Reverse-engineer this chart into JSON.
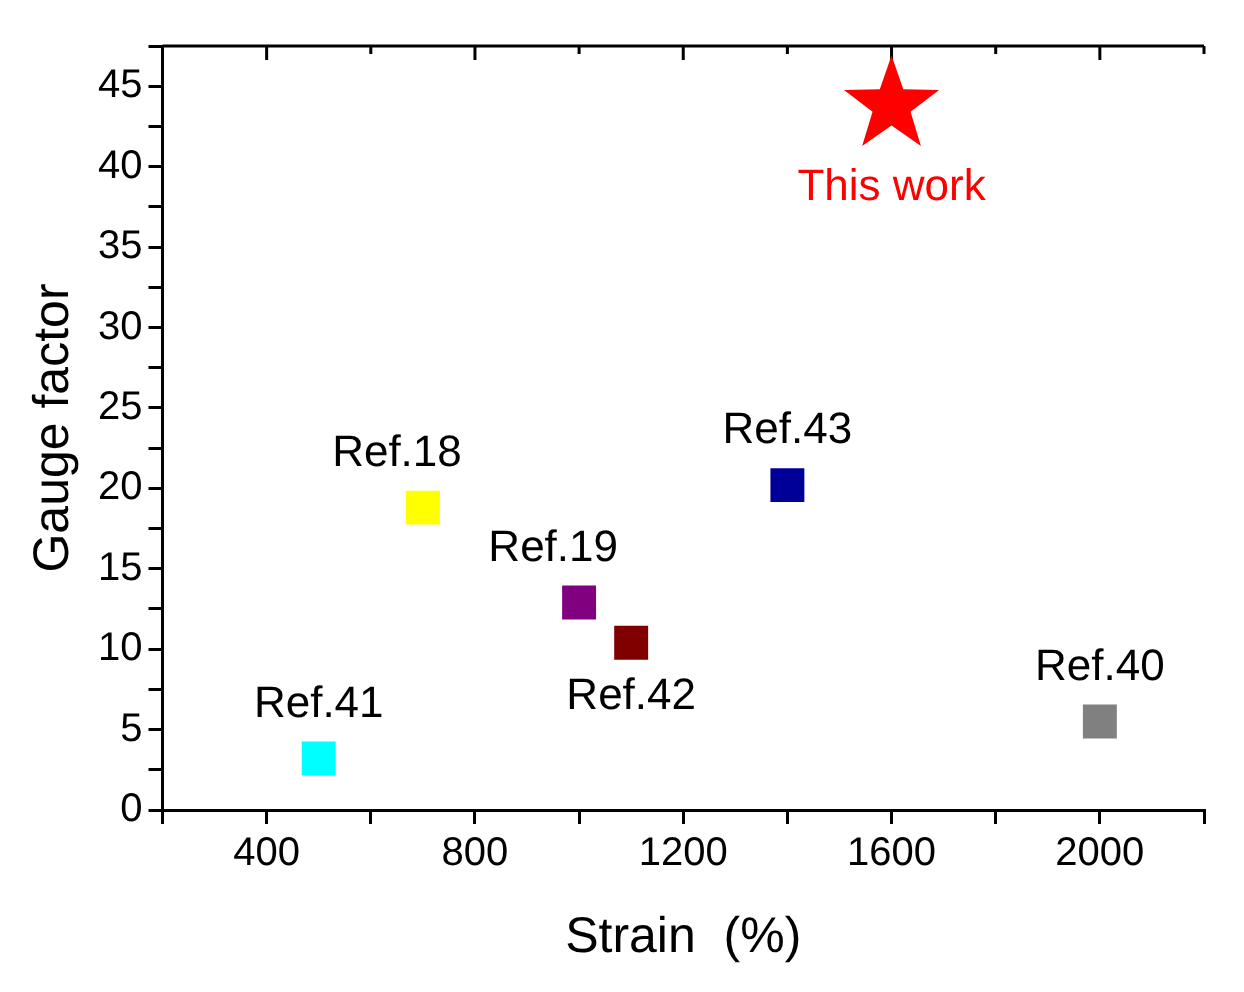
{
  "chart_data": {
    "type": "scatter",
    "xlabel": "Strain  (%)",
    "ylabel": "Gauge factor",
    "xlim": [
      200,
      2200
    ],
    "xticks": [
      400,
      800,
      1200,
      1600,
      2000
    ],
    "ylim": [
      0,
      47.5
    ],
    "yticks": [
      0,
      5,
      10,
      15,
      20,
      25,
      30,
      35,
      40,
      45
    ],
    "grid": false,
    "legend": false,
    "series": [
      {
        "name": "This work",
        "color": "#ff0000",
        "marker": "star",
        "x": [
          1600
        ],
        "values": [
          43.8
        ]
      },
      {
        "name": "Ref.18",
        "color": "#ffff00",
        "marker": "square",
        "x": [
          700
        ],
        "values": [
          18.8
        ]
      },
      {
        "name": "Ref.19",
        "color": "#800080",
        "marker": "square",
        "x": [
          1000
        ],
        "values": [
          12.9
        ]
      },
      {
        "name": "Ref.42",
        "color": "#800000",
        "marker": "square",
        "x": [
          1100
        ],
        "values": [
          10.4
        ]
      },
      {
        "name": "Ref.43",
        "color": "#000099",
        "marker": "square",
        "x": [
          1400
        ],
        "values": [
          20.2
        ]
      },
      {
        "name": "Ref.41",
        "color": "#00ffff",
        "marker": "square",
        "x": [
          500
        ],
        "values": [
          3.2
        ]
      },
      {
        "name": "Ref.40",
        "color": "#808080",
        "marker": "square",
        "x": [
          2000
        ],
        "values": [
          5.5
        ]
      }
    ]
  }
}
